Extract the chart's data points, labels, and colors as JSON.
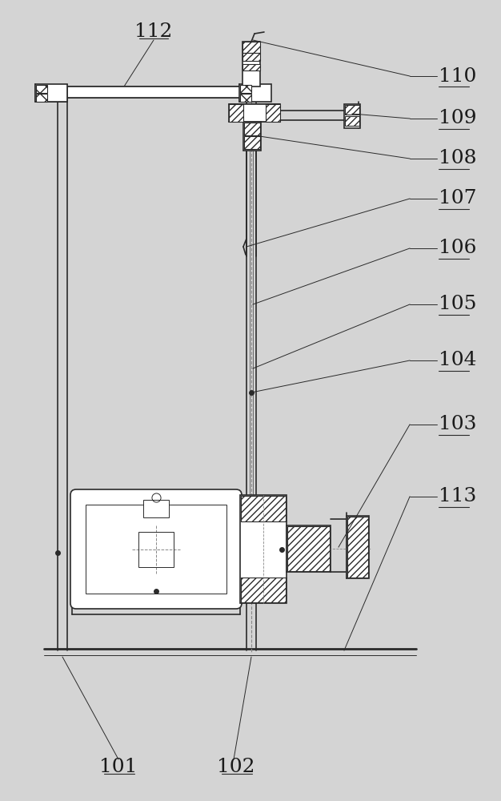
{
  "bg_color": "#d4d4d4",
  "line_color": "#2a2a2a",
  "label_color": "#1a1a1a",
  "label_fontsize": 18,
  "fig_width": 6.26,
  "fig_height": 10.0
}
